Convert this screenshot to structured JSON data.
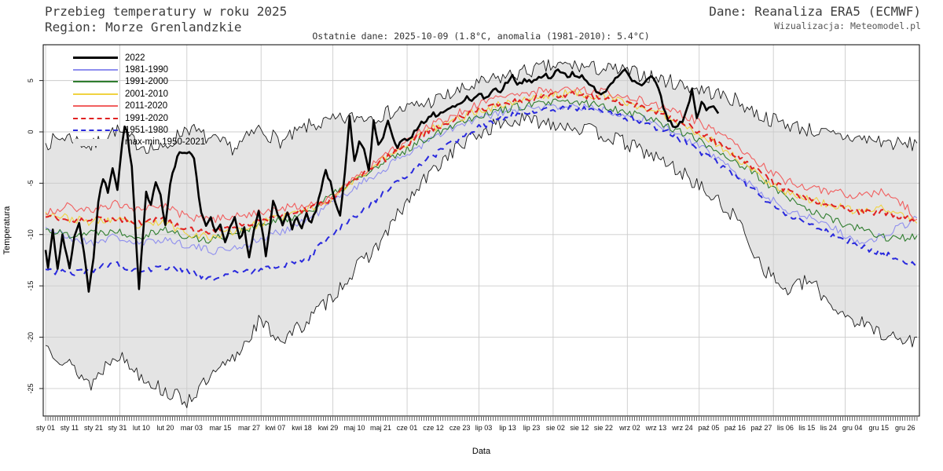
{
  "header": {
    "title_line1": "Przebieg temperatury w roku 2025",
    "title_line2": "Region: Morze Grenlandzkie",
    "source": "Dane: Reanaliza ERA5 (ECMWF)",
    "visualization": "Wizualizacja: Meteomodel.pl",
    "subtitle": "Ostatnie dane: 2025-10-09 (1.8°C, anomalia (1981-2010): 5.4°C)"
  },
  "legend": {
    "items": [
      {
        "label": "2022",
        "color": "#000000",
        "type": "thick"
      },
      {
        "label": "1981-1990",
        "color": "#8f8fee",
        "type": "solid"
      },
      {
        "label": "1991-2000",
        "color": "#2f7d2f",
        "type": "solid"
      },
      {
        "label": "2001-2010",
        "color": "#f0d341",
        "type": "solid"
      },
      {
        "label": "2011-2020",
        "color": "#f15f5f",
        "type": "solid"
      },
      {
        "label": "1991-2020",
        "color": "#e02222",
        "type": "dashed"
      },
      {
        "label": "1951-1980",
        "color": "#2929dd",
        "type": "dashed"
      },
      {
        "label": "max-min 1950-2021",
        "color": "#e4e4e4",
        "type": "band"
      }
    ]
  },
  "chart_data": {
    "type": "line",
    "title": "Przebieg temperatury w roku 2025 — Morze Grenlandzkie",
    "xlabel": "Data",
    "ylabel": "Temperatura",
    "x_unit": "day_of_year_2025",
    "ylim": [
      -27.7,
      8.5
    ],
    "grid": true,
    "grid_color": "#cccccc",
    "legend_position": "upper-left-inside",
    "yticks": [
      5,
      0,
      -5,
      -10,
      -15,
      -20,
      -25
    ],
    "xticks": [
      {
        "day": 1,
        "label": "sty 01"
      },
      {
        "day": 11,
        "label": "sty 11"
      },
      {
        "day": 21,
        "label": "sty 21"
      },
      {
        "day": 31,
        "label": "sty 31"
      },
      {
        "day": 41,
        "label": "lut 10"
      },
      {
        "day": 51,
        "label": "lut 20"
      },
      {
        "day": 62,
        "label": "mar 03"
      },
      {
        "day": 74,
        "label": "mar 15"
      },
      {
        "day": 86,
        "label": "mar 27"
      },
      {
        "day": 97,
        "label": "kwi 07"
      },
      {
        "day": 108,
        "label": "kwi 18"
      },
      {
        "day": 119,
        "label": "kwi 29"
      },
      {
        "day": 130,
        "label": "maj 10"
      },
      {
        "day": 141,
        "label": "maj 21"
      },
      {
        "day": 152,
        "label": "cze 01"
      },
      {
        "day": 163,
        "label": "cze 12"
      },
      {
        "day": 174,
        "label": "cze 23"
      },
      {
        "day": 184,
        "label": "lip 03"
      },
      {
        "day": 194,
        "label": "lip 13"
      },
      {
        "day": 204,
        "label": "lip 23"
      },
      {
        "day": 214,
        "label": "sie 02"
      },
      {
        "day": 224,
        "label": "sie 12"
      },
      {
        "day": 234,
        "label": "sie 22"
      },
      {
        "day": 245,
        "label": "wrz 02"
      },
      {
        "day": 256,
        "label": "wrz 13"
      },
      {
        "day": 267,
        "label": "wrz 24"
      },
      {
        "day": 278,
        "label": "paź 05"
      },
      {
        "day": 289,
        "label": "paź 16"
      },
      {
        "day": 300,
        "label": "paź 27"
      },
      {
        "day": 310,
        "label": "lis 06"
      },
      {
        "day": 319,
        "label": "lis 15"
      },
      {
        "day": 328,
        "label": "lis 24"
      },
      {
        "day": 338,
        "label": "gru 04"
      },
      {
        "day": 349,
        "label": "gru 15"
      },
      {
        "day": 360,
        "label": "gru 26"
      }
    ],
    "month_start_days": [
      1,
      32,
      60,
      91,
      121,
      152,
      182,
      213,
      244,
      274,
      305,
      335
    ],
    "climatology_days": [
      1,
      10,
      20,
      30,
      40,
      50,
      60,
      70,
      80,
      90,
      100,
      110,
      120,
      130,
      140,
      150,
      160,
      170,
      180,
      190,
      200,
      210,
      220,
      230,
      240,
      250,
      260,
      270,
      280,
      290,
      300,
      310,
      320,
      330,
      340,
      350,
      360,
      365
    ],
    "band": {
      "name": "max-min 1950-2021",
      "fill_color": "#e4e4e4",
      "edge_color": "#1a1a1a",
      "jitter": 0.75,
      "max": [
        -1.1,
        -0.4,
        -1.5,
        0.2,
        -1.2,
        -1.8,
        0.5,
        -0.8,
        -1.6,
        0.3,
        -1,
        0.5,
        1,
        1.4,
        1.6,
        2.2,
        2.8,
        3.6,
        4.5,
        5.2,
        5.8,
        6.3,
        6.5,
        6.2,
        6,
        5.6,
        5,
        4.4,
        3.8,
        3,
        1.5,
        0.8,
        0.2,
        -0.4,
        -0.6,
        -0.9,
        -1.3,
        -1.1
      ],
      "min": [
        -20.8,
        -22.5,
        -24.6,
        -21.5,
        -23.5,
        -25.2,
        -26.2,
        -24,
        -22,
        -18.5,
        -20.3,
        -18.5,
        -16.2,
        -13.5,
        -11,
        -7.5,
        -4.5,
        -2,
        -0.5,
        0.8,
        1.1,
        1,
        0.6,
        0,
        -0.8,
        -1.8,
        -3,
        -4.5,
        -6.5,
        -8.5,
        -13,
        -15.5,
        -14.5,
        -17,
        -18.5,
        -19.5,
        -20.5,
        -20
      ]
    },
    "series": [
      {
        "name": "1981-1990",
        "color": "#8f8fee",
        "width": 1.1,
        "jitter": 0.4,
        "values": [
          -9.3,
          -10.3,
          -10.8,
          -10.2,
          -11,
          -10.4,
          -11,
          -11.6,
          -11.3,
          -10.6,
          -9.6,
          -8.6,
          -7,
          -5.4,
          -4,
          -2.4,
          -1,
          0.2,
          1.1,
          1.8,
          2.2,
          2.4,
          2.5,
          2.3,
          1.9,
          1.3,
          0.4,
          -0.9,
          -2.3,
          -4,
          -6,
          -7.5,
          -8.3,
          -9.3,
          -10.8,
          -10.2,
          -9,
          -8.4
        ]
      },
      {
        "name": "1991-2000",
        "color": "#2f7d2f",
        "width": 1.1,
        "jitter": 0.4,
        "values": [
          -9.5,
          -10,
          -9.8,
          -9.6,
          -10.2,
          -9.4,
          -10.3,
          -10.5,
          -9.8,
          -9.2,
          -8.6,
          -7.8,
          -6.3,
          -4.8,
          -3.4,
          -2,
          -0.6,
          0.6,
          1.5,
          2.1,
          2.5,
          2.8,
          2.9,
          2.7,
          2.2,
          1.6,
          0.7,
          -0.4,
          -1.6,
          -3,
          -4.6,
          -6.4,
          -7.6,
          -8.6,
          -9.4,
          -10.2,
          -10.4,
          -10.1
        ]
      },
      {
        "name": "2001-2010",
        "color": "#f0d341",
        "width": 1.1,
        "jitter": 0.4,
        "values": [
          -7.8,
          -8.4,
          -8.8,
          -8.5,
          -9.2,
          -8.8,
          -9.8,
          -10.3,
          -9.6,
          -9,
          -8.2,
          -7.6,
          -6.5,
          -4.6,
          -3,
          -1.4,
          0,
          1,
          1.9,
          2.6,
          3.1,
          3.5,
          3.8,
          3.6,
          3.1,
          2.4,
          1.6,
          0.4,
          -1,
          -2.6,
          -4.4,
          -5.8,
          -6.6,
          -7.2,
          -7.8,
          -7.4,
          -8.2,
          -8.9
        ]
      },
      {
        "name": "2011-2020",
        "color": "#f15f5f",
        "width": 1.1,
        "jitter": 0.4,
        "values": [
          -8,
          -7.2,
          -7.8,
          -7,
          -7.6,
          -7.2,
          -8.3,
          -8.6,
          -8.2,
          -7.8,
          -7.4,
          -7.2,
          -6.5,
          -4.6,
          -2.8,
          -1.2,
          0.4,
          1.5,
          2.5,
          3.3,
          3.8,
          4.1,
          4.2,
          4,
          3.6,
          3.1,
          2.4,
          1.4,
          0.2,
          -1.4,
          -3.2,
          -4.8,
          -5.4,
          -5.8,
          -6.2,
          -5.9,
          -7.2,
          -8.5
        ]
      },
      {
        "name": "1991-2020",
        "color": "#e02222",
        "width": 2,
        "dash": "8,5",
        "jitter": 0.3,
        "values": [
          -8.3,
          -8.5,
          -8.6,
          -8.4,
          -8.9,
          -8.5,
          -9.4,
          -9.7,
          -9.2,
          -8.7,
          -8.1,
          -7.5,
          -6.6,
          -4.7,
          -3.1,
          -1.5,
          0,
          1.1,
          2,
          2.7,
          3.1,
          3.5,
          3.7,
          3.4,
          3,
          2.4,
          1.6,
          0.5,
          -0.8,
          -2.3,
          -4.1,
          -5.7,
          -6.5,
          -7.2,
          -7.8,
          -7.8,
          -8.3,
          -8.6
        ]
      },
      {
        "name": "1951-1980",
        "color": "#2929dd",
        "width": 2,
        "dash": "8,6",
        "jitter": 0.3,
        "values": [
          -13.4,
          -13.8,
          -13.5,
          -12.8,
          -13.6,
          -13.2,
          -13.4,
          -14.4,
          -13.8,
          -13.5,
          -13,
          -12.4,
          -10.1,
          -8.2,
          -6.4,
          -4.6,
          -2.8,
          -1.2,
          0.2,
          1.2,
          1.9,
          2.2,
          2.3,
          2.1,
          1.6,
          1,
          0.1,
          -1.2,
          -2.8,
          -4.4,
          -6.4,
          -7.9,
          -9,
          -10,
          -11,
          -11.8,
          -12.6,
          -13
        ]
      },
      {
        "name": "2022",
        "color": "#000000",
        "width": 2.6,
        "jitter": 0.22,
        "points": [
          [
            1,
            -11.5
          ],
          [
            2,
            -13.2
          ],
          [
            4,
            -9.3
          ],
          [
            6,
            -13.5
          ],
          [
            8,
            -9.9
          ],
          [
            11,
            -13.3
          ],
          [
            13,
            -10.2
          ],
          [
            15,
            -8.8
          ],
          [
            17,
            -11.5
          ],
          [
            19,
            -15.5
          ],
          [
            21,
            -12.5
          ],
          [
            23,
            -6.8
          ],
          [
            25,
            -4.5
          ],
          [
            27,
            -5.8
          ],
          [
            29,
            -3.4
          ],
          [
            31,
            -5.5
          ],
          [
            33,
            -1.2
          ],
          [
            34,
            0.6
          ],
          [
            35,
            -0.1
          ],
          [
            37,
            -3.5
          ],
          [
            40,
            -15.3
          ],
          [
            43,
            -5.7
          ],
          [
            45,
            -7.2
          ],
          [
            47,
            -4.8
          ],
          [
            49,
            -6.2
          ],
          [
            51,
            -9.1
          ],
          [
            53,
            -5
          ],
          [
            55,
            -3.2
          ],
          [
            57,
            -1.9
          ],
          [
            59,
            -2.1
          ],
          [
            61,
            -1.8
          ],
          [
            63,
            -2.4
          ],
          [
            65,
            -6.5
          ],
          [
            66,
            -7.8
          ],
          [
            68,
            -9
          ],
          [
            70,
            -8.2
          ],
          [
            72,
            -9.8
          ],
          [
            74,
            -9
          ],
          [
            76,
            -10.8
          ],
          [
            78,
            -9.2
          ],
          [
            80,
            -8.3
          ],
          [
            82,
            -10.5
          ],
          [
            84,
            -9.3
          ],
          [
            86,
            -12.2
          ],
          [
            88,
            -9.5
          ],
          [
            90,
            -7.6
          ],
          [
            92,
            -10.5
          ],
          [
            93,
            -12.2
          ],
          [
            95,
            -8.5
          ],
          [
            96,
            -6.7
          ],
          [
            98,
            -8
          ],
          [
            100,
            -9
          ],
          [
            102,
            -7.8
          ],
          [
            104,
            -9.3
          ],
          [
            106,
            -8.2
          ],
          [
            108,
            -9.6
          ],
          [
            110,
            -8
          ],
          [
            112,
            -9
          ],
          [
            114,
            -7.6
          ],
          [
            116,
            -5.5
          ],
          [
            118,
            -3.7
          ],
          [
            120,
            -5
          ],
          [
            122,
            -6.8
          ],
          [
            124,
            -8
          ],
          [
            126,
            -4
          ],
          [
            128,
            1.4
          ],
          [
            130,
            -3
          ],
          [
            132,
            -0.8
          ],
          [
            134,
            -1.6
          ],
          [
            136,
            -3.8
          ],
          [
            138,
            1
          ],
          [
            140,
            -1.1
          ],
          [
            142,
            -0.4
          ],
          [
            144,
            0.9
          ],
          [
            146,
            -0.7
          ],
          [
            148,
            -1.4
          ],
          [
            150,
            -1
          ],
          [
            152,
            -0.7
          ],
          [
            154,
            -0.4
          ],
          [
            155,
            0.1
          ],
          [
            157,
            0.6
          ],
          [
            159,
            1
          ],
          [
            161,
            1.4
          ],
          [
            163,
            1.8
          ],
          [
            165,
            1.5
          ],
          [
            167,
            2
          ],
          [
            169,
            2.2
          ],
          [
            171,
            2.4
          ],
          [
            173,
            2.7
          ],
          [
            175,
            3
          ],
          [
            177,
            3.3
          ],
          [
            179,
            3
          ],
          [
            181,
            3.4
          ],
          [
            183,
            3.6
          ],
          [
            185,
            3.2
          ],
          [
            187,
            3.8
          ],
          [
            189,
            4.3
          ],
          [
            191,
            3.9
          ],
          [
            193,
            4.6
          ],
          [
            196,
            5.4
          ],
          [
            198,
            4.4
          ],
          [
            200,
            4.8
          ],
          [
            202,
            5.1
          ],
          [
            204,
            4.9
          ],
          [
            206,
            5.2
          ],
          [
            208,
            5.4
          ],
          [
            210,
            5.6
          ],
          [
            212,
            5.3
          ],
          [
            215,
            6.2
          ],
          [
            217,
            5.8
          ],
          [
            219,
            5.4
          ],
          [
            221,
            5.7
          ],
          [
            223,
            5.3
          ],
          [
            225,
            5.7
          ],
          [
            227,
            5
          ],
          [
            228,
            4.6
          ],
          [
            230,
            4.2
          ],
          [
            233,
            3.7
          ],
          [
            235,
            3.9
          ],
          [
            237,
            4.6
          ],
          [
            239,
            5.2
          ],
          [
            241,
            5.7
          ],
          [
            243,
            6
          ],
          [
            245,
            5.2
          ],
          [
            247,
            4.8
          ],
          [
            249,
            4.5
          ],
          [
            251,
            4.9
          ],
          [
            253,
            5.1
          ],
          [
            255,
            5.4
          ],
          [
            257,
            4.2
          ],
          [
            259,
            2.5
          ],
          [
            261,
            1.2
          ],
          [
            263,
            0.6
          ],
          [
            265,
            0.7
          ],
          [
            267,
            1
          ],
          [
            269,
            2.2
          ],
          [
            271,
            4
          ],
          [
            273,
            1.5
          ],
          [
            275,
            2.9
          ],
          [
            277,
            2.1
          ],
          [
            279,
            2.6
          ],
          [
            281,
            2.3
          ],
          [
            282,
            1.8
          ]
        ]
      }
    ]
  }
}
